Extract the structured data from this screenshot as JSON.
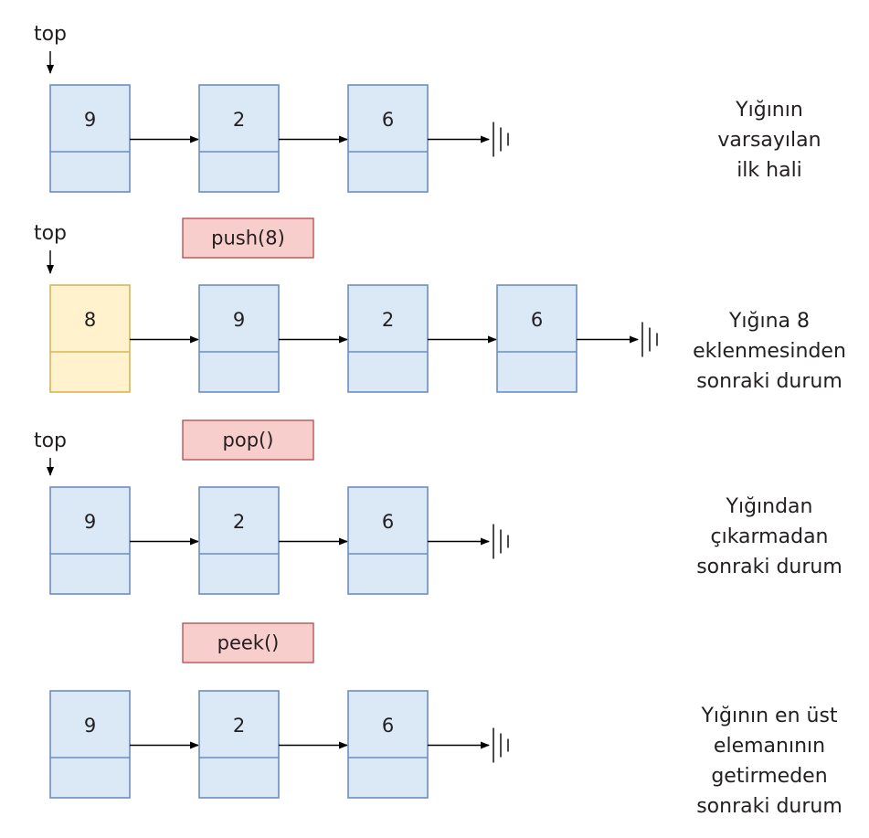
{
  "colors": {
    "node_fill": "#dbe8f6",
    "node_stroke": "#6c8ebf",
    "new_node_fill": "#fff2cc",
    "new_node_stroke": "#d6b656",
    "op_fill": "#f8cecc",
    "op_stroke": "#b85450"
  },
  "rows": [
    {
      "top_label": "top",
      "operation": "",
      "nodes": [
        {
          "value": "9",
          "highlight": false
        },
        {
          "value": "2",
          "highlight": false
        },
        {
          "value": "6",
          "highlight": false
        }
      ],
      "description": [
        "Yığının",
        "varsayılan",
        "ilk hali"
      ]
    },
    {
      "top_label": "top",
      "operation": "push(8)",
      "nodes": [
        {
          "value": "8",
          "highlight": true
        },
        {
          "value": "9",
          "highlight": false
        },
        {
          "value": "2",
          "highlight": false
        },
        {
          "value": "6",
          "highlight": false
        }
      ],
      "description": [
        "Yığına 8",
        "eklenmesinden",
        "sonraki durum"
      ]
    },
    {
      "top_label": "top",
      "operation": "pop()",
      "nodes": [
        {
          "value": "9",
          "highlight": false
        },
        {
          "value": "2",
          "highlight": false
        },
        {
          "value": "6",
          "highlight": false
        }
      ],
      "description": [
        "Yığından",
        "çıkarmadan",
        "sonraki durum"
      ]
    },
    {
      "top_label": "",
      "operation": "peek()",
      "nodes": [
        {
          "value": "9",
          "highlight": false
        },
        {
          "value": "2",
          "highlight": false
        },
        {
          "value": "6",
          "highlight": false
        }
      ],
      "description": [
        "Yığının en üst",
        "elemanının",
        "getirmeden",
        "sonraki durum"
      ]
    }
  ]
}
